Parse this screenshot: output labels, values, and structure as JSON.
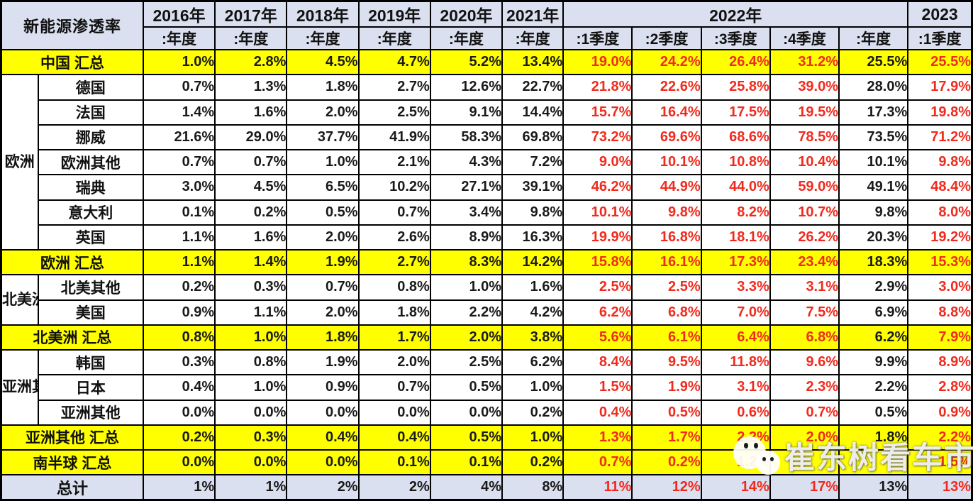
{
  "chart_data": {
    "type": "table",
    "title": "新能源渗透率",
    "header": {
      "corner_label": "新能源渗透率",
      "year_groups": [
        {
          "label": "2016年",
          "sub": [
            ":年度"
          ]
        },
        {
          "label": "2017年",
          "sub": [
            ":年度"
          ]
        },
        {
          "label": "2018年",
          "sub": [
            ":年度"
          ]
        },
        {
          "label": "2019年",
          "sub": [
            ":年度"
          ]
        },
        {
          "label": "2020年",
          "sub": [
            ":年度"
          ]
        },
        {
          "label": "2021年",
          "sub": [
            ":年度"
          ]
        },
        {
          "label": "2022年",
          "sub": [
            ":1季度",
            ":2季度",
            ":3季度",
            ":4季度",
            ":年度"
          ]
        },
        {
          "label": "2023",
          "sub": [
            ":1季度"
          ]
        }
      ]
    },
    "column_value_colors": [
      "black",
      "black",
      "black",
      "black",
      "black",
      "black",
      "red",
      "red",
      "red",
      "red",
      "black",
      "red"
    ],
    "rows": [
      {
        "type": "summary",
        "label": "中国 汇总",
        "values": [
          "1.0%",
          "2.8%",
          "4.5%",
          "4.7%",
          "5.2%",
          "13.4%",
          "19.0%",
          "24.2%",
          "26.4%",
          "31.2%",
          "25.5%",
          "25.5%"
        ]
      },
      {
        "type": "country",
        "region": "欧洲",
        "region_span": 7,
        "label": "德国",
        "values": [
          "0.7%",
          "1.3%",
          "1.8%",
          "2.7%",
          "12.6%",
          "22.7%",
          "21.8%",
          "22.6%",
          "25.8%",
          "39.0%",
          "28.0%",
          "17.9%"
        ]
      },
      {
        "type": "country",
        "label": "法国",
        "values": [
          "1.4%",
          "1.6%",
          "2.0%",
          "2.5%",
          "9.1%",
          "14.4%",
          "15.7%",
          "16.4%",
          "17.5%",
          "19.5%",
          "17.3%",
          "19.8%"
        ]
      },
      {
        "type": "country",
        "label": "挪威",
        "values": [
          "21.6%",
          "29.0%",
          "37.7%",
          "41.9%",
          "58.3%",
          "69.8%",
          "73.2%",
          "69.6%",
          "68.6%",
          "78.5%",
          "73.5%",
          "71.2%"
        ]
      },
      {
        "type": "country",
        "label": "欧洲其他",
        "values": [
          "0.7%",
          "0.7%",
          "1.0%",
          "2.1%",
          "4.3%",
          "7.2%",
          "9.0%",
          "10.1%",
          "10.8%",
          "10.4%",
          "10.1%",
          "9.8%"
        ]
      },
      {
        "type": "country",
        "label": "瑞典",
        "values": [
          "3.0%",
          "4.5%",
          "6.5%",
          "10.2%",
          "27.1%",
          "39.1%",
          "46.2%",
          "44.9%",
          "44.0%",
          "59.0%",
          "49.1%",
          "48.4%"
        ]
      },
      {
        "type": "country",
        "label": "意大利",
        "values": [
          "0.1%",
          "0.2%",
          "0.5%",
          "0.7%",
          "3.4%",
          "9.8%",
          "10.1%",
          "9.8%",
          "8.2%",
          "10.7%",
          "9.8%",
          "8.0%"
        ]
      },
      {
        "type": "country",
        "label": "英国",
        "values": [
          "1.1%",
          "1.6%",
          "2.0%",
          "2.6%",
          "8.9%",
          "16.3%",
          "19.9%",
          "16.8%",
          "18.1%",
          "26.2%",
          "20.3%",
          "19.2%"
        ]
      },
      {
        "type": "summary",
        "label": "欧洲 汇总",
        "values": [
          "1.1%",
          "1.4%",
          "1.9%",
          "2.7%",
          "8.3%",
          "14.2%",
          "15.8%",
          "16.1%",
          "17.3%",
          "23.4%",
          "18.3%",
          "15.3%"
        ]
      },
      {
        "type": "country",
        "region": "北美洲",
        "region_span": 2,
        "label": "北美其他",
        "values": [
          "0.2%",
          "0.3%",
          "0.7%",
          "0.8%",
          "1.0%",
          "1.6%",
          "2.5%",
          "2.5%",
          "3.3%",
          "3.1%",
          "2.9%",
          "3.0%"
        ]
      },
      {
        "type": "country",
        "label": "美国",
        "values": [
          "0.9%",
          "1.1%",
          "2.0%",
          "1.8%",
          "2.2%",
          "4.2%",
          "6.2%",
          "6.8%",
          "7.0%",
          "7.5%",
          "6.9%",
          "8.8%"
        ]
      },
      {
        "type": "summary",
        "label": "北美洲 汇总",
        "values": [
          "0.8%",
          "1.0%",
          "1.8%",
          "1.7%",
          "2.0%",
          "3.8%",
          "5.6%",
          "6.1%",
          "6.4%",
          "6.8%",
          "6.2%",
          "7.9%"
        ]
      },
      {
        "type": "country",
        "region": "亚洲其他",
        "region_span": 3,
        "label": "韩国",
        "values": [
          "0.3%",
          "0.8%",
          "1.9%",
          "2.0%",
          "2.5%",
          "6.2%",
          "8.4%",
          "9.5%",
          "11.8%",
          "9.6%",
          "9.9%",
          "8.9%"
        ]
      },
      {
        "type": "country",
        "label": "日本",
        "values": [
          "0.4%",
          "1.0%",
          "0.9%",
          "0.7%",
          "0.5%",
          "1.0%",
          "1.5%",
          "1.9%",
          "3.1%",
          "2.3%",
          "2.2%",
          "2.8%"
        ]
      },
      {
        "type": "country",
        "label": "亚洲其他",
        "values": [
          "0.0%",
          "0.0%",
          "0.0%",
          "0.0%",
          "0.0%",
          "0.2%",
          "0.4%",
          "0.5%",
          "0.6%",
          "0.7%",
          "0.5%",
          "0.9%"
        ]
      },
      {
        "type": "summary",
        "label": "亚洲其他 汇总",
        "values": [
          "0.2%",
          "0.3%",
          "0.4%",
          "0.4%",
          "0.5%",
          "1.0%",
          "1.3%",
          "1.7%",
          "2.2%",
          "2.0%",
          "1.8%",
          "2.2%"
        ]
      },
      {
        "type": "summary",
        "white_top": true,
        "label": "南半球 汇总",
        "values": [
          "0.0%",
          "0.0%",
          "0.0%",
          "0.1%",
          "0.1%",
          "0.2%",
          "0.7%",
          "0.2%",
          "1.2%",
          "",
          "",
          "1.5%"
        ]
      },
      {
        "type": "total",
        "label": "总计",
        "values": [
          "1%",
          "1%",
          "2%",
          "2%",
          "4%",
          "8%",
          "11%",
          "12%",
          "14%",
          "17%",
          "13%",
          "13%"
        ]
      }
    ]
  },
  "watermark": {
    "text": "崔东树看车市"
  },
  "colors": {
    "header_bg": "#dbe0f0",
    "summary_highlight": "#ffff00",
    "total_row_bg": "#dbe0f0",
    "red_value_text": "#f02b1e",
    "black_value_text": "#1a1a1a",
    "border": "#000000",
    "watermark_text": "#ffffff"
  }
}
